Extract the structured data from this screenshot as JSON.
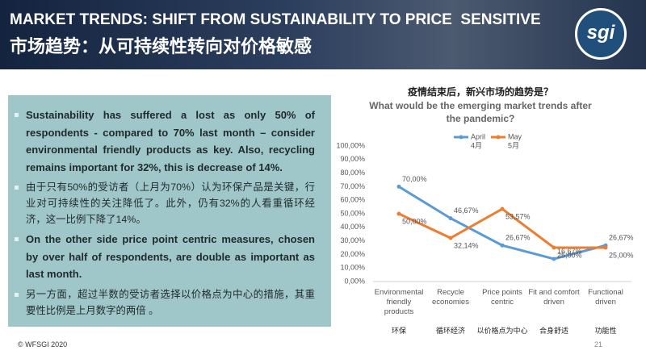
{
  "header": {
    "title": "MARKET TRENDS: SHIFT FROM SUSTAINABILITY TO PRICE  SENSITIVE",
    "title_zh": "市场趋势：从可持续性转向对价格敏感",
    "logo": "sgi"
  },
  "body": {
    "bullets": [
      {
        "text": "Sustainability has suffered a lost as only 50% of respondents - compared to 70% last month – consider environmental friendly products as key. Also, recycling remains important for 32%, this is decrease of 14%.",
        "bold": true
      },
      {
        "text": "由于只有50%的受访者（上月为70%）认为环保产品是关键，行业对可持续性的关注降低了。此外，仍有32%的人看重循环经济，这一比例下降了14%。",
        "bold": false
      },
      {
        "text": "On the other side price point centric  measures, chosen by over half of respondents, are double as important as last month.",
        "bold": true
      },
      {
        "text": "另一方面，超过半数的受访者选择以价格点为中心的措施，其重要性比例是上月数字的两倍 。",
        "bold": false
      }
    ]
  },
  "footer": {
    "copyright": "© WFSGI 2020",
    "page": "21"
  },
  "chart_data": {
    "type": "line",
    "title": "疫情结束后，新兴市场的趋势是？",
    "subtitle": "What would be the emerging market trends after the pandemic?",
    "categories": [
      "Environmental friendly products",
      "Recycle economies",
      "Price points centric",
      "Fit and comfort driven",
      "Functional driven"
    ],
    "categories_zh": [
      "环保",
      "循环经济",
      "以价格点为中心",
      "合身舒适",
      "功能性"
    ],
    "series": [
      {
        "name": "April",
        "name_zh": "4月",
        "color": "#5b9bd5",
        "values": [
          70,
          46.67,
          26.67,
          16.67,
          26.67
        ],
        "value_labels": [
          "70,00%",
          "46,67%",
          "26,67%",
          "16,67%",
          "26,67%"
        ]
      },
      {
        "name": "May",
        "name_zh": "5月",
        "color": "#ed7d31",
        "values": [
          50,
          32.14,
          53.57,
          25,
          25
        ],
        "value_labels": [
          "50,00%",
          "32,14%",
          "53,57%",
          "25,00%",
          "25,00%"
        ]
      }
    ],
    "ylim": [
      0,
      100
    ],
    "yticks": [
      {
        "value": 0,
        "label": "0,00%"
      },
      {
        "value": 10,
        "label": "10,00%"
      },
      {
        "value": 20,
        "label": "20,00%"
      },
      {
        "value": 30,
        "label": "30,00%"
      },
      {
        "value": 40,
        "label": "40,00%"
      },
      {
        "value": 50,
        "label": "50,00%"
      },
      {
        "value": 60,
        "label": "60,00%"
      },
      {
        "value": 70,
        "label": "70,00%"
      },
      {
        "value": 80,
        "label": "80,00%"
      },
      {
        "value": 90,
        "label": "90,00%"
      },
      {
        "value": 100,
        "label": "100,00%"
      }
    ],
    "grid": false
  }
}
